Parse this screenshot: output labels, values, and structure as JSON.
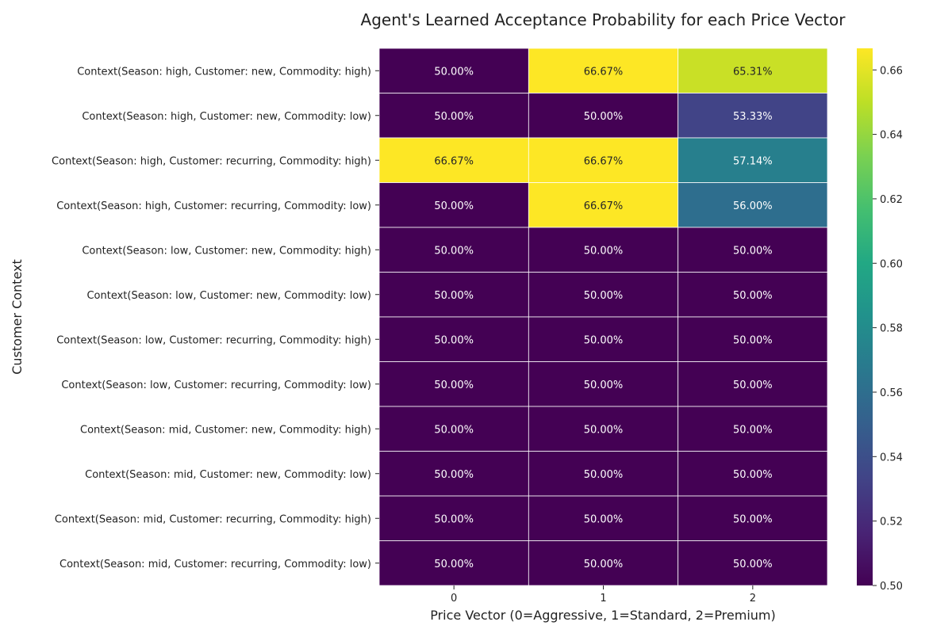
{
  "chart_data": {
    "type": "heatmap",
    "title": "Agent's Learned Acceptance Probability for each Price Vector",
    "xlabel": "Price Vector (0=Aggressive, 1=Standard, 2=Premium)",
    "ylabel": "Customer Context",
    "x_categories": [
      "0",
      "1",
      "2"
    ],
    "y_categories": [
      "Context(Season: high, Customer: new, Commodity: high)",
      "Context(Season: high, Customer: new, Commodity: low)",
      "Context(Season: high, Customer: recurring, Commodity: high)",
      "Context(Season: high, Customer: recurring, Commodity: low)",
      "Context(Season: low, Customer: new, Commodity: high)",
      "Context(Season: low, Customer: new, Commodity: low)",
      "Context(Season: low, Customer: recurring, Commodity: high)",
      "Context(Season: low, Customer: recurring, Commodity: low)",
      "Context(Season: mid, Customer: new, Commodity: high)",
      "Context(Season: mid, Customer: new, Commodity: low)",
      "Context(Season: mid, Customer: recurring, Commodity: high)",
      "Context(Season: mid, Customer: recurring, Commodity: low)"
    ],
    "values": [
      [
        0.5,
        0.6667,
        0.6531
      ],
      [
        0.5,
        0.5,
        0.5333
      ],
      [
        0.6667,
        0.6667,
        0.5714
      ],
      [
        0.5,
        0.6667,
        0.56
      ],
      [
        0.5,
        0.5,
        0.5
      ],
      [
        0.5,
        0.5,
        0.5
      ],
      [
        0.5,
        0.5,
        0.5
      ],
      [
        0.5,
        0.5,
        0.5
      ],
      [
        0.5,
        0.5,
        0.5
      ],
      [
        0.5,
        0.5,
        0.5
      ],
      [
        0.5,
        0.5,
        0.5
      ],
      [
        0.5,
        0.5,
        0.5
      ]
    ],
    "labels": [
      [
        "50.00%",
        "66.67%",
        "65.31%"
      ],
      [
        "50.00%",
        "50.00%",
        "53.33%"
      ],
      [
        "66.67%",
        "66.67%",
        "57.14%"
      ],
      [
        "50.00%",
        "66.67%",
        "56.00%"
      ],
      [
        "50.00%",
        "50.00%",
        "50.00%"
      ],
      [
        "50.00%",
        "50.00%",
        "50.00%"
      ],
      [
        "50.00%",
        "50.00%",
        "50.00%"
      ],
      [
        "50.00%",
        "50.00%",
        "50.00%"
      ],
      [
        "50.00%",
        "50.00%",
        "50.00%"
      ],
      [
        "50.00%",
        "50.00%",
        "50.00%"
      ],
      [
        "50.00%",
        "50.00%",
        "50.00%"
      ],
      [
        "50.00%",
        "50.00%",
        "50.00%"
      ]
    ],
    "colormap": "viridis",
    "vmin": 0.5,
    "vmax": 0.6667,
    "colorbar_ticks": [
      "0.50",
      "0.52",
      "0.54",
      "0.56",
      "0.58",
      "0.60",
      "0.62",
      "0.64",
      "0.66"
    ],
    "grid": false,
    "legend": "colorbar-right"
  }
}
